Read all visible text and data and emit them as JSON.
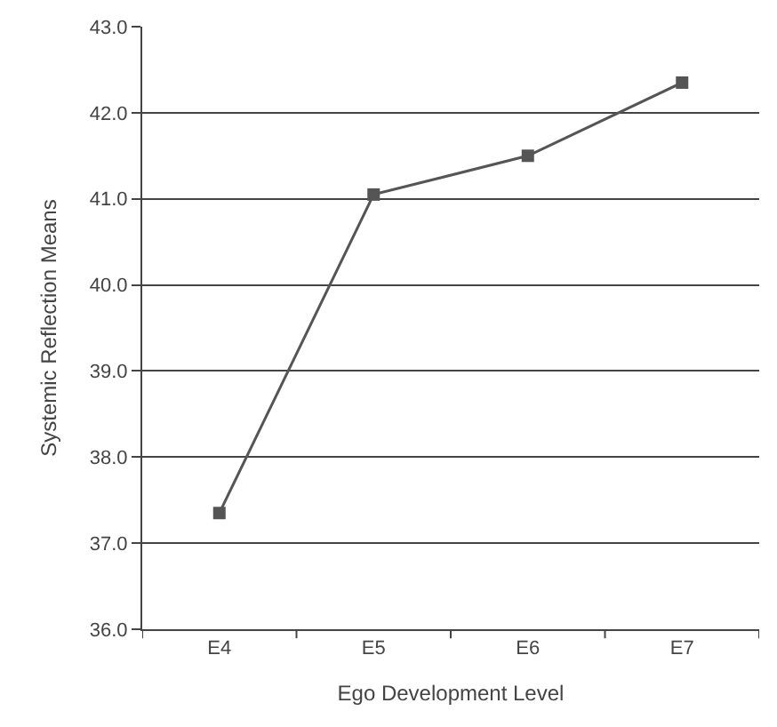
{
  "chart_data": {
    "type": "line",
    "xlabel": "Ego Development Level",
    "ylabel": "Systemic Reflection Means",
    "categories": [
      "E4",
      "E5",
      "E6",
      "E7"
    ],
    "series": [
      {
        "color": "#555555",
        "values": [
          37.35,
          41.05,
          41.5,
          42.35
        ]
      }
    ],
    "ylim": [
      36.0,
      43.0
    ],
    "yticks": [
      {
        "value": 36,
        "label": "36.0"
      },
      {
        "value": 37,
        "label": "37.0"
      },
      {
        "value": 38,
        "label": "38.0"
      },
      {
        "value": 39,
        "label": "39.0"
      },
      {
        "value": 40,
        "label": "40.0"
      },
      {
        "value": 41,
        "label": "41.0"
      },
      {
        "value": 42,
        "label": "42.0"
      },
      {
        "value": 43,
        "label": "43.0"
      }
    ],
    "grid": "y",
    "marker": "square",
    "line_style": "solid",
    "legend": false
  }
}
